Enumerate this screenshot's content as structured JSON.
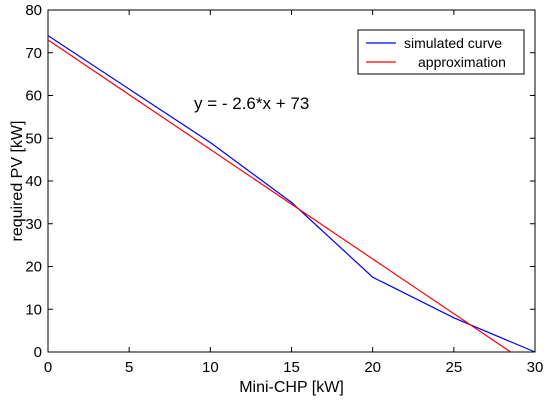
{
  "chart_data": {
    "type": "line",
    "xlabel": "Mini-CHP [kW]",
    "ylabel": "required PV [kW]",
    "xlim": [
      0,
      30
    ],
    "ylim": [
      0,
      80
    ],
    "xticks": [
      0,
      5,
      10,
      15,
      20,
      25,
      30
    ],
    "yticks": [
      0,
      10,
      20,
      30,
      40,
      50,
      60,
      70,
      80
    ],
    "grid": false,
    "legend_position": "top-right",
    "annotation": "y = - 2.6*x + 73",
    "series": [
      {
        "name": "simulated curve",
        "color": "#0000ff",
        "x": [
          0,
          5,
          10,
          15,
          20,
          25,
          30
        ],
        "y": [
          74,
          61.5,
          49,
          35,
          17.5,
          8,
          0
        ]
      },
      {
        "name": "approximation",
        "color": "#ff0000",
        "x": [
          0,
          28.5
        ],
        "y": [
          73,
          0
        ]
      }
    ]
  }
}
